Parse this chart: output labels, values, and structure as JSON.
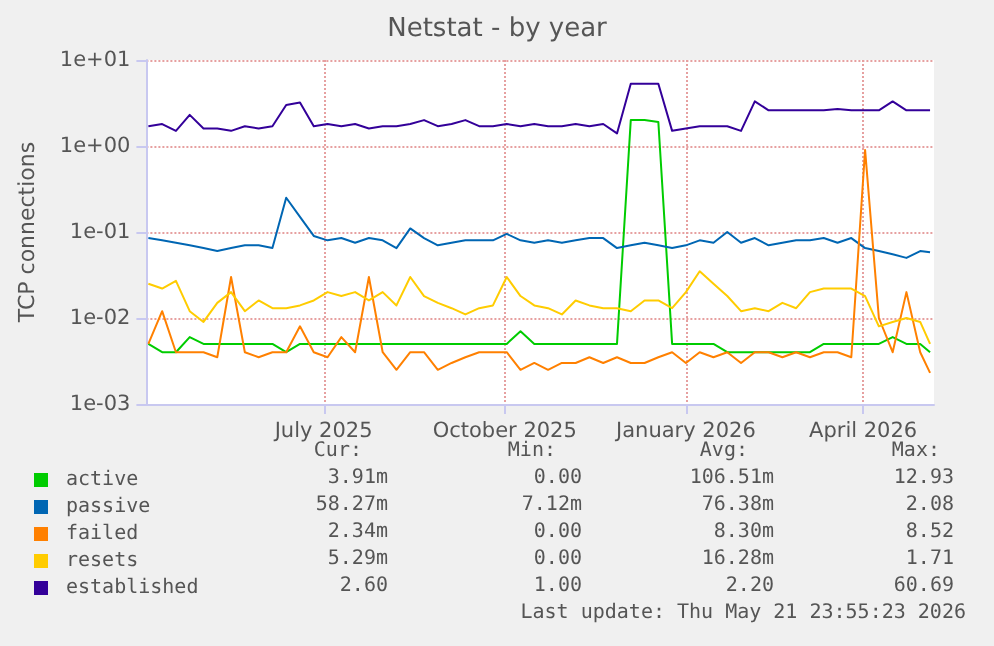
{
  "chart_data": {
    "type": "line",
    "title": "Netstat - by year",
    "ylabel": "TCP connections",
    "x": [
      "2025-04-03",
      "2025-04-10",
      "2025-04-17",
      "2025-04-24",
      "2025-05-01",
      "2025-05-08",
      "2025-05-15",
      "2025-05-22",
      "2025-05-29",
      "2025-06-05",
      "2025-06-12",
      "2025-06-19",
      "2025-06-26",
      "2025-07-03",
      "2025-07-10",
      "2025-07-17",
      "2025-07-24",
      "2025-07-31",
      "2025-08-07",
      "2025-08-14",
      "2025-08-21",
      "2025-08-28",
      "2025-09-04",
      "2025-09-11",
      "2025-09-18",
      "2025-09-25",
      "2025-10-02",
      "2025-10-09",
      "2025-10-16",
      "2025-10-23",
      "2025-10-30",
      "2025-11-06",
      "2025-11-13",
      "2025-11-20",
      "2025-11-27",
      "2025-12-04",
      "2025-12-11",
      "2025-12-18",
      "2025-12-25",
      "2026-01-01",
      "2026-01-08",
      "2026-01-15",
      "2026-01-22",
      "2026-01-29",
      "2026-02-05",
      "2026-02-12",
      "2026-02-19",
      "2026-02-26",
      "2026-03-05",
      "2026-03-12",
      "2026-03-19",
      "2026-03-26",
      "2026-04-02",
      "2026-04-09",
      "2026-04-16",
      "2026-04-23",
      "2026-04-30",
      "2026-05-05"
    ],
    "series": [
      {
        "name": "active",
        "color": "#00cc00",
        "values": [
          0.005,
          0.004,
          0.004,
          0.006,
          0.005,
          0.005,
          0.005,
          0.005,
          0.005,
          0.005,
          0.004,
          0.005,
          0.005,
          0.005,
          0.005,
          0.005,
          0.005,
          0.005,
          0.005,
          0.005,
          0.005,
          0.005,
          0.005,
          0.005,
          0.005,
          0.005,
          0.005,
          0.007,
          0.005,
          0.005,
          0.005,
          0.005,
          0.005,
          0.005,
          0.005,
          2.0,
          2.0,
          1.9,
          0.005,
          0.005,
          0.005,
          0.005,
          0.004,
          0.004,
          0.004,
          0.004,
          0.004,
          0.004,
          0.004,
          0.005,
          0.005,
          0.005,
          0.005,
          0.005,
          0.006,
          0.005,
          0.005,
          0.004
        ]
      },
      {
        "name": "passive",
        "color": "#0066b3",
        "values": [
          0.085,
          0.08,
          0.075,
          0.07,
          0.065,
          0.06,
          0.065,
          0.07,
          0.07,
          0.065,
          0.25,
          0.15,
          0.09,
          0.08,
          0.085,
          0.075,
          0.085,
          0.08,
          0.065,
          0.11,
          0.085,
          0.07,
          0.075,
          0.08,
          0.08,
          0.08,
          0.095,
          0.08,
          0.075,
          0.08,
          0.075,
          0.08,
          0.085,
          0.085,
          0.065,
          0.07,
          0.075,
          0.07,
          0.065,
          0.07,
          0.08,
          0.075,
          0.1,
          0.075,
          0.085,
          0.07,
          0.075,
          0.08,
          0.08,
          0.085,
          0.075,
          0.085,
          0.065,
          0.06,
          0.055,
          0.05,
          0.06,
          0.058
        ]
      },
      {
        "name": "failed",
        "color": "#ff8000",
        "values": [
          0.005,
          0.012,
          0.004,
          0.004,
          0.004,
          0.0035,
          0.03,
          0.004,
          0.0035,
          0.004,
          0.004,
          0.008,
          0.004,
          0.0035,
          0.006,
          0.004,
          0.03,
          0.004,
          0.0025,
          0.004,
          0.004,
          0.0025,
          0.003,
          0.0035,
          0.004,
          0.004,
          0.004,
          0.0025,
          0.003,
          0.0025,
          0.003,
          0.003,
          0.0035,
          0.003,
          0.0035,
          0.003,
          0.003,
          0.0035,
          0.004,
          0.003,
          0.004,
          0.0035,
          0.004,
          0.003,
          0.004,
          0.004,
          0.0035,
          0.004,
          0.0035,
          0.004,
          0.004,
          0.0035,
          0.9,
          0.01,
          0.004,
          0.02,
          0.004,
          0.0023
        ]
      },
      {
        "name": "resets",
        "color": "#ffcc00",
        "values": [
          0.025,
          0.022,
          0.027,
          0.012,
          0.009,
          0.015,
          0.02,
          0.012,
          0.016,
          0.013,
          0.013,
          0.014,
          0.016,
          0.02,
          0.018,
          0.02,
          0.016,
          0.02,
          0.014,
          0.03,
          0.018,
          0.015,
          0.013,
          0.011,
          0.013,
          0.014,
          0.03,
          0.018,
          0.014,
          0.013,
          0.011,
          0.016,
          0.014,
          0.013,
          0.013,
          0.012,
          0.016,
          0.016,
          0.013,
          0.02,
          0.035,
          0.025,
          0.018,
          0.012,
          0.013,
          0.012,
          0.015,
          0.013,
          0.02,
          0.022,
          0.022,
          0.022,
          0.018,
          0.008,
          0.009,
          0.01,
          0.009,
          0.005
        ]
      },
      {
        "name": "established",
        "color": "#330099",
        "values": [
          1.7,
          1.8,
          1.5,
          2.3,
          1.6,
          1.6,
          1.5,
          1.7,
          1.6,
          1.7,
          3.0,
          3.2,
          1.7,
          1.8,
          1.7,
          1.8,
          1.6,
          1.7,
          1.7,
          1.8,
          2.0,
          1.7,
          1.8,
          2.0,
          1.7,
          1.7,
          1.8,
          1.7,
          1.8,
          1.7,
          1.7,
          1.8,
          1.7,
          1.8,
          1.4,
          5.3,
          5.3,
          5.3,
          1.5,
          1.6,
          1.7,
          1.7,
          1.7,
          1.5,
          3.3,
          2.6,
          2.6,
          2.6,
          2.6,
          2.6,
          2.7,
          2.6,
          2.6,
          2.6,
          3.3,
          2.6,
          2.6,
          2.6
        ]
      }
    ],
    "xlim": [
      "2025-04-02",
      "2026-05-07"
    ],
    "xticks": [
      {
        "value": "2025-07-01",
        "label": "July 2025"
      },
      {
        "value": "2025-10-01",
        "label": "October 2025"
      },
      {
        "value": "2026-01-01",
        "label": "January 2026"
      },
      {
        "value": "2026-04-01",
        "label": "April 2026"
      }
    ],
    "ylim": [
      0.001,
      10
    ],
    "yticks": [
      {
        "value": 0.001,
        "label": "1e-03"
      },
      {
        "value": 0.01,
        "label": "1e-02"
      },
      {
        "value": 0.1,
        "label": "1e-01"
      },
      {
        "value": 1,
        "label": "1e+00"
      },
      {
        "value": 10,
        "label": "1e+01"
      }
    ],
    "log": "y",
    "grid": true,
    "legend": "bottom left",
    "marker": "none",
    "line_style": "solid",
    "annotations": [
      "Cur:",
      "Min:",
      "Avg:",
      "Max:",
      "3.91m",
      "0.00",
      "106.51m",
      "12.93",
      "58.27m",
      "7.12m",
      "76.38m",
      "2.08",
      "2.34m",
      "0.00",
      "8.30m",
      "8.52",
      "5.29m",
      "0.00",
      "16.28m",
      "1.71",
      "2.60",
      "1.00",
      "2.20",
      "60.69",
      "Last update: Thu May 21 23:55:23 2026"
    ]
  }
}
